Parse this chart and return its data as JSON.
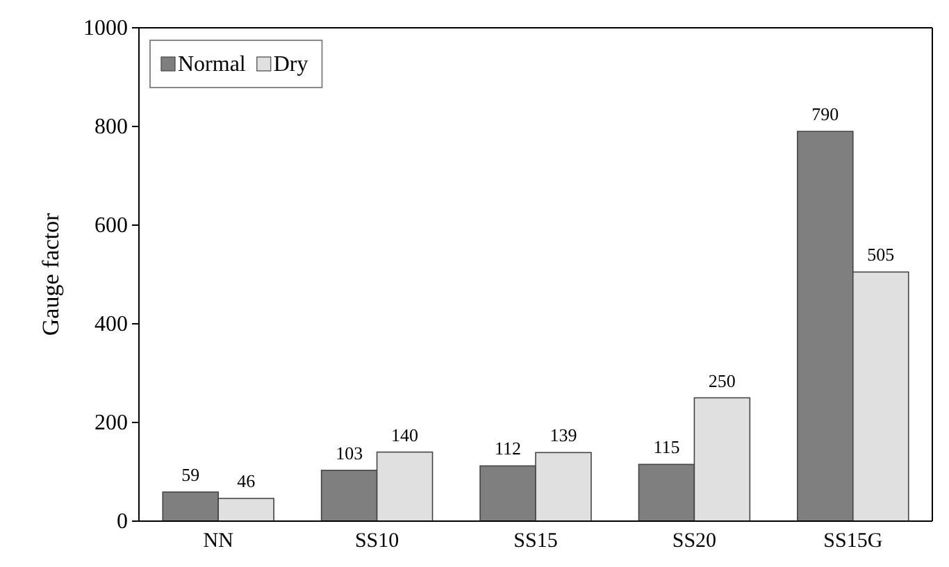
{
  "chart_data": {
    "type": "bar",
    "ylabel": "Gauge factor",
    "categories": [
      "NN",
      "SS10",
      "SS15",
      "SS20",
      "SS15G"
    ],
    "series": [
      {
        "name": "Normal",
        "color": "#7f7f7f",
        "values": [
          59,
          103,
          112,
          115,
          790
        ]
      },
      {
        "name": "Dry",
        "color": "#e0e0e0",
        "values": [
          46,
          140,
          139,
          250,
          505
        ]
      }
    ],
    "ylim": [
      0,
      1000
    ],
    "yticks": [
      0,
      200,
      400,
      600,
      800,
      1000
    ],
    "data_labels": true,
    "legend": "top left",
    "grid": false
  }
}
